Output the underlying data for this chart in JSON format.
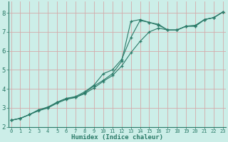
{
  "title": "",
  "xlabel": "Humidex (Indice chaleur)",
  "ylabel": "",
  "bg_color": "#cceee8",
  "grid_color": "#d4aaaa",
  "line_color": "#2a7a68",
  "x_ticks": [
    0,
    1,
    2,
    3,
    4,
    5,
    6,
    7,
    8,
    9,
    10,
    11,
    12,
    13,
    14,
    15,
    16,
    17,
    18,
    19,
    20,
    21,
    22,
    23
  ],
  "y_ticks": [
    2,
    3,
    4,
    5,
    6,
    7,
    8
  ],
  "xlim": [
    -0.3,
    23.3
  ],
  "ylim": [
    2.0,
    8.6
  ],
  "series": [
    [
      2.35,
      2.45,
      2.65,
      2.9,
      3.05,
      3.3,
      3.5,
      3.55,
      3.8,
      4.15,
      4.45,
      4.8,
      5.45,
      7.55,
      7.65,
      7.5,
      7.4,
      7.1,
      7.1,
      7.3,
      7.35,
      7.65,
      7.75,
      8.05
    ],
    [
      2.35,
      2.45,
      2.65,
      2.85,
      3.0,
      3.25,
      3.45,
      3.55,
      3.75,
      4.05,
      4.4,
      4.7,
      5.2,
      5.9,
      6.5,
      7.0,
      7.2,
      7.1,
      7.1,
      7.3,
      7.3,
      7.65,
      7.75,
      8.05
    ],
    [
      2.35,
      2.45,
      2.65,
      2.9,
      3.0,
      3.3,
      3.5,
      3.6,
      3.85,
      4.2,
      4.8,
      5.0,
      5.55,
      6.7,
      7.6,
      7.5,
      7.35,
      7.1,
      7.1,
      7.3,
      7.3,
      7.65,
      7.75,
      8.05
    ]
  ]
}
